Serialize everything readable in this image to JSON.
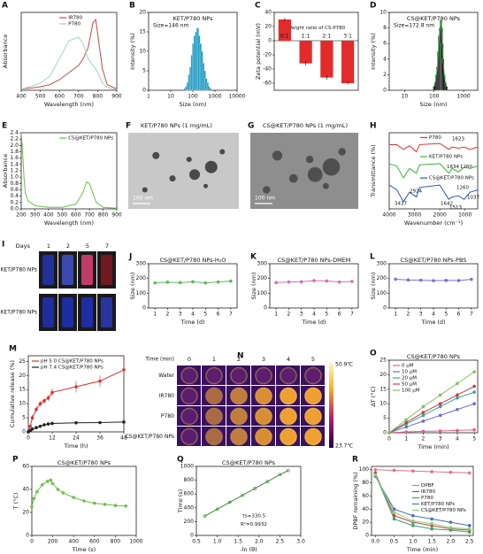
{
  "chart_data": [
    {
      "label": "A",
      "type": "line",
      "xlabel": "Wavelength (nm)",
      "ylabel": "Absorbance",
      "xlim": [
        400,
        900
      ],
      "xticks": [
        400,
        500,
        600,
        700,
        800,
        900
      ],
      "ylim": [
        0,
        1.1
      ],
      "yticks": [],
      "legend": "upper right",
      "x": [
        400,
        450,
        500,
        550,
        600,
        650,
        700,
        725,
        750,
        775,
        790,
        800,
        825,
        850,
        900
      ],
      "series": [
        {
          "name": "IR780",
          "color": "#c0504d",
          "values": [
            0.02,
            0.03,
            0.05,
            0.08,
            0.15,
            0.25,
            0.35,
            0.45,
            0.6,
            0.95,
            1.0,
            0.8,
            0.3,
            0.08,
            0.02
          ]
        },
        {
          "name": "P780",
          "color": "#9ed8c8",
          "values": [
            0.02,
            0.05,
            0.1,
            0.2,
            0.45,
            0.7,
            0.75,
            0.65,
            0.45,
            0.35,
            0.3,
            0.25,
            0.1,
            0.04,
            0.01
          ]
        }
      ]
    },
    {
      "label": "B",
      "type": "bar",
      "title": "KET/P780 NPs",
      "subtitle": "Size=146 nm",
      "xlabel": "Size (nm)",
      "ylabel": "Intensity (%)",
      "xscale": "log",
      "xlim": [
        1,
        10000
      ],
      "xticks": [
        1,
        10,
        100,
        1000,
        10000
      ],
      "ylim": [
        0,
        20
      ],
      "yticks": [
        0,
        5,
        10,
        15,
        20
      ],
      "color": "#2aa0c4",
      "x": [
        44,
        51,
        59,
        68,
        79,
        91,
        106,
        122,
        142,
        164,
        190,
        220,
        255,
        295,
        342,
        396,
        459,
        531,
        615
      ],
      "values": [
        0.5,
        1,
        2,
        4,
        6,
        9,
        12,
        14,
        15,
        16,
        14,
        12,
        10,
        7,
        5,
        3,
        2,
        1,
        0.5
      ]
    },
    {
      "label": "C",
      "type": "bar",
      "annotations": [
        "Weight ratio of CS:P780"
      ],
      "ylabel": "Zeta potential (mV)",
      "ylim": [
        -70,
        40
      ],
      "yticks": [
        -60,
        -40,
        -20,
        0,
        20,
        40
      ],
      "color": "#e32b2b",
      "categories": [
        "0:1",
        "1:1",
        "2:1",
        "3:1"
      ],
      "values": [
        30,
        -32,
        -52,
        -60
      ],
      "errors": [
        2,
        3,
        3,
        2
      ]
    },
    {
      "label": "D",
      "type": "bar",
      "title": "CS@KET/P780 NPs",
      "subtitle": "Size=172.8 nm",
      "xlabel": "Size (nm)",
      "ylabel": "Intensity (%)",
      "xscale": "log",
      "xlim": [
        3,
        3000
      ],
      "xticks": [
        10,
        100,
        1000
      ],
      "ylim": [
        0,
        10
      ],
      "yticks": [
        0,
        2,
        4,
        6,
        8,
        10
      ],
      "color": "#111111",
      "line_color": "#3cb043",
      "x": [
        100,
        110,
        120,
        130,
        140,
        150,
        160,
        170,
        180,
        190,
        200,
        220,
        240,
        260
      ],
      "values": [
        0.5,
        1,
        2,
        3,
        5,
        7,
        8,
        9,
        8,
        6,
        4,
        2,
        1,
        0.5
      ]
    },
    {
      "label": "E",
      "type": "line",
      "xlabel": "Wavelength (nm)",
      "ylabel": "Absorbance",
      "xlim": [
        200,
        900
      ],
      "xticks": [
        200,
        300,
        400,
        500,
        600,
        700,
        800,
        900
      ],
      "ylim": [
        0,
        2.4
      ],
      "yticks": [
        {
          "value": 0,
          "label": "0.0"
        },
        0.2,
        0.4,
        0.6,
        0.8,
        {
          "value": 1,
          "label": "1.0"
        },
        1.2,
        1.4,
        1.6,
        1.8,
        {
          "value": 2,
          "label": "2.0"
        },
        2.2,
        2.4
      ],
      "legend": "upper right",
      "x": [
        200,
        210,
        220,
        230,
        250,
        300,
        400,
        500,
        600,
        650,
        680,
        700,
        720,
        750,
        800,
        900
      ],
      "series": [
        {
          "name": "CS@KET/P780 NPs",
          "color": "#6cc04a",
          "values": [
            2.4,
            1.8,
            1.0,
            0.5,
            0.25,
            0.1,
            0.05,
            0.05,
            0.15,
            0.5,
            0.85,
            0.8,
            0.55,
            0.2,
            0.05,
            0.02
          ]
        }
      ]
    },
    {
      "label": "H",
      "type": "line",
      "xlabel": "Wavenumber (cm⁻¹)",
      "ylabel": "Transmittance (%)",
      "xlim": [
        4000,
        500
      ],
      "xticks": [
        4000,
        3000,
        2000,
        1000
      ],
      "ylim": [
        0,
        3.2
      ],
      "yticks": [],
      "legend": "inline",
      "annotations": [
        "1623",
        "1634",
        "1260",
        "3437",
        "2924",
        "1642",
        "1513",
        "1260",
        "1037"
      ],
      "x": [
        4000,
        3700,
        3437,
        3200,
        2924,
        2800,
        2000,
        1642,
        1513,
        1260,
        1037,
        800,
        500
      ],
      "series": [
        {
          "name": "P780",
          "color": "#e03030",
          "values": [
            2.7,
            2.7,
            2.5,
            2.65,
            2.4,
            2.7,
            2.75,
            2.5,
            2.6,
            2.55,
            2.6,
            2.5,
            2.6
          ]
        },
        {
          "name": "KET/P780 NPs",
          "color": "#3cb043",
          "values": [
            1.9,
            1.8,
            1.3,
            1.7,
            1.5,
            1.85,
            1.9,
            1.5,
            1.7,
            1.55,
            1.75,
            1.7,
            1.8
          ]
        },
        {
          "name": "CS@KET/P780 NPs",
          "color": "#2a55b0",
          "values": [
            1.0,
            0.8,
            0.3,
            0.7,
            0.5,
            0.9,
            1.0,
            0.4,
            0.5,
            0.55,
            0.4,
            0.7,
            0.8
          ]
        }
      ]
    },
    {
      "label": "J",
      "type": "line",
      "markers": true,
      "title": "CS@KET/P780 NPs-H₂O",
      "xlabel": "Time (d)",
      "ylabel": "Size (nm)",
      "xlim": [
        0.5,
        7.5
      ],
      "xticks": [
        1,
        2,
        3,
        4,
        5,
        6,
        7
      ],
      "ylim": [
        0,
        300
      ],
      "yticks": [
        0,
        100,
        200,
        300
      ],
      "x": [
        1,
        2,
        3,
        4,
        5,
        6,
        7
      ],
      "series": [
        {
          "color": "#5cb85c",
          "values": [
            170,
            175,
            172,
            178,
            170,
            176,
            182
          ],
          "errors": [
            10,
            10,
            9,
            11,
            10,
            9,
            10
          ]
        }
      ]
    },
    {
      "label": "K",
      "type": "line",
      "markers": true,
      "title": "CS@KET/P780 NPs-DMEM",
      "xlabel": "Time (d)",
      "ylabel": "Size (nm)",
      "xlim": [
        0.5,
        7.5
      ],
      "xticks": [
        1,
        2,
        3,
        4,
        5,
        6,
        7
      ],
      "ylim": [
        0,
        300
      ],
      "yticks": [
        0,
        100,
        200,
        300
      ],
      "x": [
        1,
        2,
        3,
        4,
        5,
        6,
        7
      ],
      "series": [
        {
          "color": "#d76fae",
          "values": [
            172,
            176,
            178,
            185,
            183,
            176,
            180
          ],
          "errors": [
            10,
            11,
            12,
            13,
            12,
            10,
            11
          ]
        }
      ]
    },
    {
      "label": "L",
      "type": "line",
      "markers": true,
      "title": "CS@KET/P780 NPs-PBS",
      "xlabel": "Time (d)",
      "ylabel": "Size (nm)",
      "xlim": [
        0.5,
        7.5
      ],
      "xticks": [
        1,
        2,
        3,
        4,
        5,
        6,
        7
      ],
      "ylim": [
        0,
        300
      ],
      "yticks": [
        0,
        100,
        200,
        300
      ],
      "x": [
        1,
        2,
        3,
        4,
        5,
        6,
        7
      ],
      "series": [
        {
          "color": "#7a6fd0",
          "values": [
            195,
            190,
            188,
            185,
            187,
            186,
            194
          ],
          "errors": [
            10,
            10,
            9,
            10,
            9,
            10,
            11
          ]
        }
      ]
    },
    {
      "label": "M",
      "type": "line",
      "markers": true,
      "xlabel": "Time (h)",
      "ylabel": "Cumulative release (%)",
      "xlim": [
        0,
        48
      ],
      "xticks": [
        0,
        12,
        24,
        36,
        48
      ],
      "ylim": [
        0,
        27
      ],
      "yticks": [
        0,
        5,
        10,
        15,
        20,
        25
      ],
      "legend": "upper left",
      "x": [
        0,
        1,
        2,
        4,
        6,
        8,
        10,
        12,
        24,
        36,
        48
      ],
      "series": [
        {
          "name": "pH 5.0 CS@KET/P780 NPs",
          "color": "#e03030",
          "values": [
            0,
            2,
            5,
            8,
            10,
            11,
            12,
            14,
            16,
            18,
            22
          ],
          "errors": [
            0,
            0.5,
            1,
            1,
            1,
            1,
            1,
            1.5,
            2,
            2,
            3
          ]
        },
        {
          "name": "pH 7.4 CS@KET/P780 NPs",
          "color": "#222222",
          "values": [
            0,
            0.5,
            1,
            1.5,
            2,
            2.5,
            2.8,
            3,
            3.2,
            3.3,
            3.5
          ],
          "errors": [
            0,
            0.2,
            0.2,
            0.3,
            0.3,
            0.3,
            0.3,
            0.4,
            0.4,
            0.4,
            0.4
          ]
        }
      ]
    },
    {
      "label": "O",
      "type": "line",
      "markers": true,
      "title": "CS@KET/P780 NPs",
      "xlabel": "Time (min)",
      "ylabel": "ΔT (°C)",
      "xlim": [
        0,
        5.2
      ],
      "xticks": [
        0,
        1,
        2,
        3,
        4,
        5
      ],
      "ylim": [
        0,
        25
      ],
      "yticks": [
        0,
        5,
        10,
        15,
        20,
        25
      ],
      "legend": "upper left",
      "x": [
        0,
        1,
        2,
        3,
        4,
        5
      ],
      "series": [
        {
          "name": "0 μM",
          "color": "#e0608a",
          "values": [
            0,
            0.3,
            0.5,
            0.6,
            0.8,
            1
          ]
        },
        {
          "name": "10 μM",
          "color": "#6a6ad0",
          "values": [
            0,
            2,
            4,
            6,
            8,
            10
          ]
        },
        {
          "name": "20 μM",
          "color": "#3aa0a0",
          "values": [
            0,
            3,
            6,
            9,
            12,
            14
          ]
        },
        {
          "name": "50 μM",
          "color": "#c04040",
          "values": [
            0,
            3.5,
            7,
            10,
            13,
            16
          ]
        },
        {
          "name": "100 μM",
          "color": "#80c060",
          "values": [
            0,
            4.5,
            9,
            13,
            17,
            21
          ]
        }
      ]
    },
    {
      "label": "P",
      "type": "line",
      "markers": true,
      "title": "CS@KET/P780 NPs",
      "xlabel": "Time (s)",
      "ylabel": "T (°C)",
      "xlim": [
        0,
        1000
      ],
      "xticks": [
        0,
        200,
        400,
        600,
        800,
        1000
      ],
      "ylim": [
        0,
        60
      ],
      "yticks": [
        0,
        20,
        40,
        60
      ],
      "x": [
        0,
        20,
        50,
        100,
        150,
        180,
        200,
        250,
        300,
        400,
        500,
        600,
        700,
        800,
        900
      ],
      "series": [
        {
          "color": "#6cc04a",
          "values": [
            25,
            32,
            38,
            44,
            47,
            48,
            45,
            40,
            37,
            33,
            30,
            28,
            27,
            26,
            25.5
          ]
        }
      ]
    },
    {
      "label": "Q",
      "type": "scatter",
      "title": "CS@KET/P780 NPs",
      "xlabel": "-ln (θ)",
      "ylabel": "Time (s)",
      "xlim": [
        0.5,
        3.0
      ],
      "xticks": [
        0.5,
        {
          "value": 1,
          "label": "1.0"
        },
        1.5,
        {
          "value": 2,
          "label": "2.0"
        },
        2.5,
        {
          "value": 3,
          "label": "3.0"
        }
      ],
      "ylim": [
        0,
        1000
      ],
      "yticks": [
        0,
        200,
        400,
        600,
        800,
        1000
      ],
      "annotations": [
        "τs=330.5",
        "R²=0.9932"
      ],
      "x": [
        0.7,
        1.0,
        1.3,
        1.6,
        1.9,
        2.2,
        2.5,
        2.7
      ],
      "series": [
        {
          "color": "#3a8a3a",
          "values": [
            280,
            380,
            480,
            580,
            680,
            780,
            880,
            940
          ]
        }
      ]
    },
    {
      "label": "R",
      "type": "line",
      "markers": true,
      "xlabel": "Time (min)",
      "ylabel": "DPBF remaining (%)",
      "xlim": [
        -0.1,
        2.6
      ],
      "xticks": [
        {
          "value": 0,
          "label": "0.0"
        },
        0.5,
        {
          "value": 1,
          "label": "1.0"
        },
        1.5,
        {
          "value": 2,
          "label": "2.0"
        },
        2.5
      ],
      "ylim": [
        0,
        105
      ],
      "yticks": [
        0,
        20,
        40,
        60,
        80,
        100
      ],
      "legend": "center right",
      "x": [
        0,
        0.5,
        1,
        1.5,
        2,
        2.5
      ],
      "series": [
        {
          "name": "DPBF",
          "color": "#e07090",
          "values": [
            100,
            99,
            98,
            97,
            96,
            95
          ]
        },
        {
          "name": "IR780",
          "color": "#c04040",
          "values": [
            95,
            30,
            20,
            15,
            10,
            8
          ]
        },
        {
          "name": "P780",
          "color": "#3aa070",
          "values": [
            93,
            25,
            15,
            10,
            8,
            5
          ]
        },
        {
          "name": "KET/P780 NPs",
          "color": "#4a70c0",
          "values": [
            90,
            40,
            30,
            25,
            20,
            15
          ]
        },
        {
          "name": "CS@KET/P780 NPs",
          "color": "#90d070",
          "values": [
            92,
            35,
            22,
            18,
            12,
            10
          ]
        }
      ]
    }
  ],
  "images": [
    {
      "label": "F",
      "title": "KET/P780 NPs (1 mg/mL)",
      "scale_bar": "100 nm"
    },
    {
      "label": "G",
      "title": "CS@KET/P780 NPs (1 mg/mL)",
      "scale_bar": "100 nm"
    },
    {
      "label": "I",
      "column_title": "Days",
      "columns": [
        "1",
        "2",
        "5",
        "7"
      ],
      "rows": [
        "KET/P780 NPs",
        "CS@KET/P780 NPs"
      ]
    },
    {
      "label": "N",
      "column_title": "Time (min)",
      "columns": [
        "0",
        "1",
        "2",
        "3",
        "4",
        "5"
      ],
      "rows": [
        "Water",
        "IR780",
        "P780",
        "CS@KET/P780 NPs"
      ],
      "scale_max": "50.9℃",
      "scale_min": "23.7℃"
    }
  ]
}
